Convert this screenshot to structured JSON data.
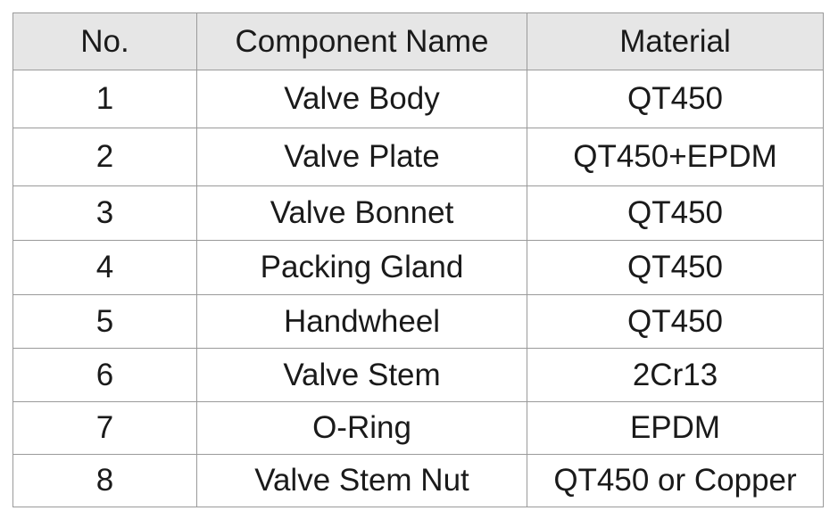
{
  "table": {
    "header": [
      "No.",
      "Component Name",
      "Material"
    ],
    "rows": [
      [
        "1",
        "Valve Body",
        "QT450"
      ],
      [
        "2",
        "Valve Plate",
        "QT450+EPDM"
      ],
      [
        "3",
        "Valve Bonnet",
        "QT450"
      ],
      [
        "4",
        "Packing Gland",
        "QT450"
      ],
      [
        "5",
        "Handwheel",
        "QT450"
      ],
      [
        "6",
        "Valve Stem",
        "2Cr13"
      ],
      [
        "7",
        "O-Ring",
        "EPDM"
      ],
      [
        "8",
        "Valve Stem Nut",
        "QT450 or Copper"
      ]
    ]
  }
}
